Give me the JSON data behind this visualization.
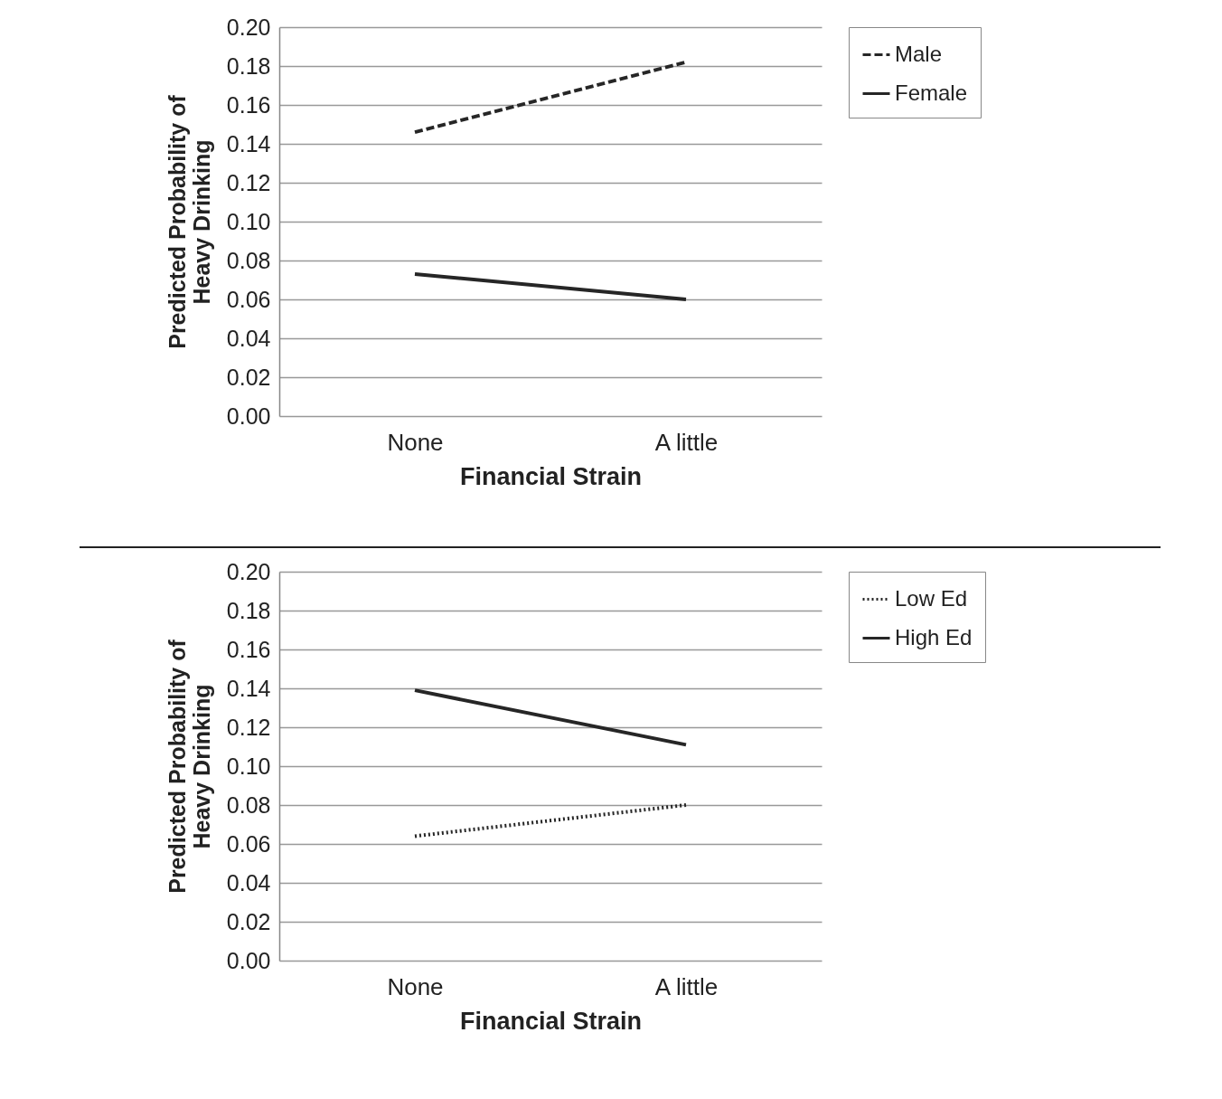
{
  "chart_data": [
    {
      "type": "line",
      "xlabel": "Financial Strain",
      "ylabel": "Predicted Probability of\nHeavy Drinking",
      "categories": [
        "None",
        "A little"
      ],
      "ylim": [
        0,
        0.2
      ],
      "yticks": [
        {
          "value": 0,
          "label": "0.00"
        },
        {
          "value": 0.02,
          "label": "0.02"
        },
        {
          "value": 0.04,
          "label": "0.04"
        },
        {
          "value": 0.06,
          "label": "0.06"
        },
        {
          "value": 0.08,
          "label": "0.08"
        },
        {
          "value": 0.1,
          "label": "0.10"
        },
        {
          "value": 0.12,
          "label": "0.12"
        },
        {
          "value": 0.14,
          "label": "0.14"
        },
        {
          "value": 0.16,
          "label": "0.16"
        },
        {
          "value": 0.18,
          "label": "0.18"
        },
        {
          "value": 0.2,
          "label": "0.20"
        }
      ],
      "grid": "y",
      "legend": "right",
      "series": [
        {
          "name": "Male",
          "color": "#262626",
          "line_style": "dashed",
          "values": [
            0.146,
            0.182
          ]
        },
        {
          "name": "Female",
          "color": "#262626",
          "line_style": "solid",
          "values": [
            0.073,
            0.06
          ]
        }
      ]
    },
    {
      "type": "line",
      "xlabel": "Financial Strain",
      "ylabel": "Predicted Probability of\nHeavy Drinking",
      "categories": [
        "None",
        "A little"
      ],
      "ylim": [
        0,
        0.2
      ],
      "yticks": [
        {
          "value": 0,
          "label": "0.00"
        },
        {
          "value": 0.02,
          "label": "0.02"
        },
        {
          "value": 0.04,
          "label": "0.04"
        },
        {
          "value": 0.06,
          "label": "0.06"
        },
        {
          "value": 0.08,
          "label": "0.08"
        },
        {
          "value": 0.1,
          "label": "0.10"
        },
        {
          "value": 0.12,
          "label": "0.12"
        },
        {
          "value": 0.14,
          "label": "0.14"
        },
        {
          "value": 0.16,
          "label": "0.16"
        },
        {
          "value": 0.18,
          "label": "0.18"
        },
        {
          "value": 0.2,
          "label": "0.20"
        }
      ],
      "grid": "y",
      "legend": "right",
      "series": [
        {
          "name": "Low Ed",
          "color": "#262626",
          "line_style": "dotted",
          "values": [
            0.064,
            0.08
          ]
        },
        {
          "name": "High Ed",
          "color": "#262626",
          "line_style": "solid",
          "values": [
            0.139,
            0.111
          ]
        }
      ]
    }
  ]
}
